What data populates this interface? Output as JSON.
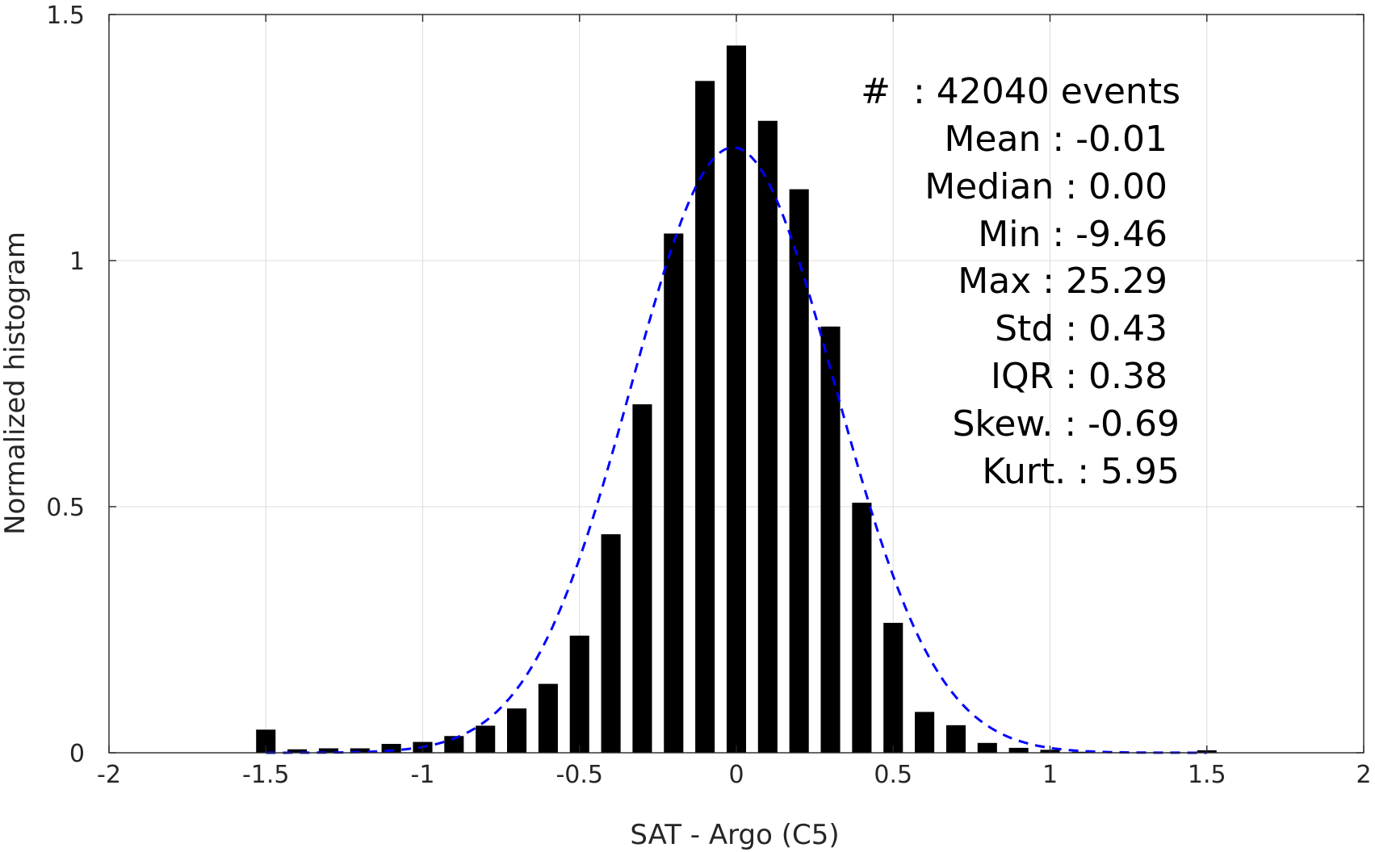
{
  "chart_data": {
    "type": "bar",
    "xlabel": "SAT - Argo (C5)",
    "ylabel": "Normalized histogram",
    "xlim": [
      -2,
      2
    ],
    "ylim": [
      0,
      1.5
    ],
    "x_ticks": [
      -2,
      -1.5,
      -1,
      -0.5,
      0,
      0.5,
      1,
      1.5,
      2
    ],
    "x_tick_labels": [
      "-2",
      "-1.5",
      "-1",
      "-0.5",
      "0",
      "0.5",
      "1",
      "1.5",
      "2"
    ],
    "y_ticks": [
      0,
      0.5,
      1,
      1.5
    ],
    "y_tick_labels": [
      "0",
      "0.5",
      "1",
      "1.5"
    ],
    "grid": true,
    "bar_color": "#000000",
    "fit_color": "#0000ff",
    "bins": [
      -1.5,
      -1.4,
      -1.3,
      -1.2,
      -1.1,
      -1.0,
      -0.9,
      -0.8,
      -0.7,
      -0.6,
      -0.5,
      -0.4,
      -0.3,
      -0.2,
      -0.1,
      0.0,
      0.1,
      0.2,
      0.3,
      0.4,
      0.5,
      0.6,
      0.7,
      0.8,
      0.9,
      1.0,
      1.1,
      1.2,
      1.3,
      1.4,
      1.5
    ],
    "values": [
      0.047,
      0.007,
      0.009,
      0.009,
      0.018,
      0.022,
      0.034,
      0.055,
      0.09,
      0.14,
      0.238,
      0.444,
      0.708,
      1.055,
      1.365,
      1.437,
      1.284,
      1.145,
      0.866,
      0.508,
      0.264,
      0.083,
      0.056,
      0.02,
      0.01,
      0.006,
      0.002,
      0.001,
      0.001,
      0.001,
      0.005
    ],
    "fit": {
      "type": "gaussian",
      "mean": -0.01,
      "std": 0.325,
      "peak": 1.23,
      "range": [
        -1.5,
        1.5
      ],
      "style": "dashed"
    },
    "stats": [
      "#  : 42040 events",
      "Mean : -0.01",
      "Median : 0.00",
      "Min : -9.46",
      "Max : 25.29",
      "Std : 0.43",
      "IQR : 0.38",
      "Skew. : -0.69",
      "Kurt. : 5.95"
    ]
  }
}
